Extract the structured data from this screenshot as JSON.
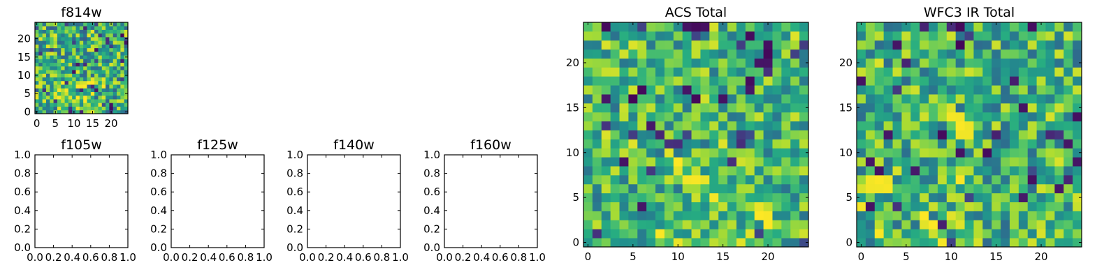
{
  "chart_data": [
    {
      "id": "f814w",
      "type": "heatmap",
      "title": "f814w",
      "grid_size": 25,
      "xticks": [
        "0",
        "5",
        "10",
        "15",
        "20"
      ],
      "yticks": [
        "0",
        "5",
        "10",
        "15",
        "20"
      ],
      "xlim": [
        -0.5,
        24.5
      ],
      "ylim": [
        -0.5,
        24.5
      ],
      "origin": "lower",
      "colormap": "viridis",
      "seed": 11,
      "value_range": [
        0.3,
        0.97
      ],
      "dark_fraction": 0.05,
      "bright_region": {
        "x": [
          6,
          18
        ],
        "y": [
          0,
          8
        ],
        "boost": 0.12
      }
    },
    {
      "id": "f105w",
      "type": "empty",
      "title": "f105w",
      "xticks": [
        "0.0",
        "0.2",
        "0.4",
        "0.6",
        "0.8",
        "1.0"
      ],
      "yticks": [
        "0.0",
        "0.2",
        "0.4",
        "0.6",
        "0.8",
        "1.0"
      ],
      "xlim": [
        0,
        1
      ],
      "ylim": [
        0,
        1
      ]
    },
    {
      "id": "f125w",
      "type": "empty",
      "title": "f125w",
      "xticks": [
        "0.0",
        "0.2",
        "0.4",
        "0.6",
        "0.8",
        "1.0"
      ],
      "yticks": [
        "0.0",
        "0.2",
        "0.4",
        "0.6",
        "0.8",
        "1.0"
      ],
      "xlim": [
        0,
        1
      ],
      "ylim": [
        0,
        1
      ]
    },
    {
      "id": "f140w",
      "type": "empty",
      "title": "f140w",
      "xticks": [
        "0.0",
        "0.2",
        "0.4",
        "0.6",
        "0.8",
        "1.0"
      ],
      "yticks": [
        "0.0",
        "0.2",
        "0.4",
        "0.6",
        "0.8",
        "1.0"
      ],
      "xlim": [
        0,
        1
      ],
      "ylim": [
        0,
        1
      ]
    },
    {
      "id": "f160w",
      "type": "empty",
      "title": "f160w",
      "xticks": [
        "0.0",
        "0.2",
        "0.4",
        "0.6",
        "0.8",
        "1.0"
      ],
      "yticks": [
        "0.0",
        "0.2",
        "0.4",
        "0.6",
        "0.8",
        "1.0"
      ],
      "xlim": [
        0,
        1
      ],
      "ylim": [
        0,
        1
      ]
    },
    {
      "id": "acs_total",
      "type": "heatmap",
      "title": "ACS Total",
      "grid_size": 25,
      "xticks": [
        "0",
        "5",
        "10",
        "15",
        "20"
      ],
      "yticks": [
        "0",
        "5",
        "10",
        "15",
        "20"
      ],
      "xlim": [
        -0.5,
        24.5
      ],
      "ylim": [
        -0.5,
        24.5
      ],
      "origin": "lower",
      "colormap": "viridis",
      "seed": 23,
      "value_range": [
        0.38,
        0.96
      ],
      "dark_fraction": 0.03,
      "dark_cells": [
        [
          11,
          24
        ],
        [
          12,
          24
        ],
        [
          13,
          24
        ],
        [
          20,
          22
        ],
        [
          20,
          21
        ],
        [
          20,
          20
        ],
        [
          18,
          18
        ],
        [
          11,
          17
        ],
        [
          18,
          17
        ],
        [
          15,
          16
        ],
        [
          2,
          16
        ],
        [
          5,
          16
        ],
        [
          6,
          17
        ],
        [
          12,
          16
        ],
        [
          4,
          9
        ]
      ],
      "bright_region": {
        "x": [
          7,
          20
        ],
        "y": [
          0,
          9
        ],
        "boost": 0.1
      }
    },
    {
      "id": "wfc3_ir_total",
      "type": "heatmap",
      "title": "WFC3 IR Total",
      "grid_size": 25,
      "xticks": [
        "0",
        "5",
        "10",
        "15",
        "20"
      ],
      "yticks": [
        "0",
        "5",
        "10",
        "15",
        "20"
      ],
      "xlim": [
        -0.5,
        24.5
      ],
      "ylim": [
        -0.5,
        24.5
      ],
      "origin": "lower",
      "colormap": "viridis",
      "seed": 37,
      "value_range": [
        0.35,
        0.95
      ],
      "dark_fraction": 0.03,
      "dark_cells": [
        [
          11,
          24
        ],
        [
          19,
          24
        ],
        [
          4,
          22
        ],
        [
          11,
          22
        ],
        [
          0,
          18
        ],
        [
          18,
          15
        ],
        [
          24,
          14
        ],
        [
          3,
          12
        ],
        [
          9,
          12
        ],
        [
          11,
          10
        ],
        [
          14,
          10
        ],
        [
          24,
          9
        ],
        [
          19,
          7
        ],
        [
          22,
          6
        ],
        [
          18,
          5
        ]
      ],
      "bright_cells": [
        [
          10,
          14
        ],
        [
          11,
          14
        ],
        [
          11,
          13
        ],
        [
          12,
          13
        ],
        [
          12,
          12
        ],
        [
          11,
          12
        ],
        [
          1,
          7
        ],
        [
          2,
          7
        ],
        [
          3,
          7
        ],
        [
          1,
          6
        ],
        [
          2,
          6
        ],
        [
          3,
          6
        ]
      ],
      "bright_region": {
        "x": [
          0,
          11
        ],
        "y": [
          0,
          8
        ],
        "boost": 0.1
      }
    }
  ]
}
